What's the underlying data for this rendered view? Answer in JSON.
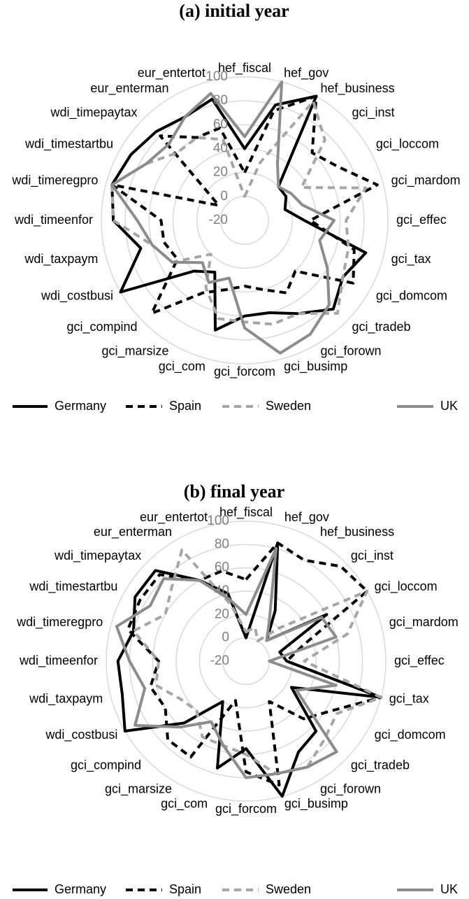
{
  "chart_data": [
    {
      "type": "radar",
      "title": "(a) initial year",
      "categories": [
        "hef_fiscal",
        "hef_gov",
        "hef_business",
        "gci_inst",
        "gci_loccom",
        "gci_mardom",
        "gci_effec",
        "gci_tax",
        "gci_domcom",
        "gci_tradeb",
        "gci_forown",
        "gci_busimp",
        "gci_forcom",
        "gci_com",
        "gci_marsize",
        "gci_compind",
        "wdi_costbusi",
        "wdi_taxpaym",
        "wdi_timeenfor",
        "wdi_timeregpro",
        "wdi_timestartbu",
        "wdi_timepaytax",
        "eur_enterman",
        "eur_entertot"
      ],
      "ylim": [
        -20,
        100
      ],
      "yticks": [
        -20,
        0,
        20,
        40,
        60,
        80,
        100
      ],
      "grid": true,
      "series": [
        {
          "name": "Germany",
          "color": "#000000",
          "dashed": false,
          "values": [
            40,
            80,
            100,
            20,
            20,
            15,
            30,
            85,
            75,
            85,
            70,
            60,
            60,
            75,
            30,
            40,
            100,
            70,
            90,
            95,
            90,
            85,
            80,
            85
          ]
        },
        {
          "name": "Spain",
          "color": "#000000",
          "dashed": true,
          "values": [
            20,
            75,
            100,
            60,
            70,
            95,
            35,
            75,
            85,
            40,
            50,
            40,
            35,
            40,
            50,
            90,
            45,
            50,
            50,
            95,
            5,
            80,
            60,
            60
          ]
        },
        {
          "name": "Sweden",
          "color": "#a6a6a6",
          "dashed": true,
          "values": [
            0,
            30,
            95,
            75,
            35,
            85,
            65,
            70,
            75,
            90,
            70,
            70,
            65,
            65,
            45,
            20,
            50,
            60,
            90,
            95,
            75,
            60,
            60,
            50
          ]
        },
        {
          "name": "UK",
          "color": "#8c8c8c",
          "dashed": false,
          "values": [
            50,
            100,
            35,
            20,
            25,
            30,
            55,
            45,
            60,
            80,
            90,
            95,
            70,
            30,
            40,
            30,
            50,
            60,
            70,
            95,
            75,
            70,
            80,
            90
          ]
        }
      ]
    },
    {
      "type": "radar",
      "title": "(b) final year",
      "categories": [
        "hef_fiscal",
        "hef_gov",
        "hef_business",
        "gci_inst",
        "gci_loccom",
        "gci_mardom",
        "gci_effec",
        "gci_tax",
        "gci_domcom",
        "gci_tradeb",
        "gci_forown",
        "gci_busimp",
        "gci_forcom",
        "gci_com",
        "gci_marsize",
        "gci_compind",
        "wdi_costbusi",
        "wdi_taxpaym",
        "wdi_timeenfor",
        "wdi_timeregpro",
        "wdi_timestartbu",
        "wdi_timepaytax",
        "eur_enterman",
        "eur_entertot"
      ],
      "ylim": [
        -20,
        100
      ],
      "yticks": [
        -20,
        0,
        20,
        40,
        60,
        80,
        100
      ],
      "grid": true,
      "series": [
        {
          "name": "Germany",
          "color": "#000000",
          "dashed": false,
          "values": [
            0,
            85,
            30,
            5,
            60,
            10,
            15,
            100,
            25,
            65,
            70,
            100,
            55,
            75,
            20,
            55,
            100,
            90,
            90,
            80,
            90,
            90,
            60,
            40
          ]
        },
        {
          "name": "Spain",
          "color": "#000000",
          "dashed": true,
          "values": [
            50,
            85,
            80,
            95,
            100,
            30,
            15,
            100,
            65,
            50,
            20,
            90,
            75,
            15,
            75,
            75,
            60,
            65,
            55,
            85,
            85,
            85,
            60,
            60
          ]
        },
        {
          "name": "Sweden",
          "color": "#a6a6a6",
          "dashed": true,
          "values": [
            5,
            10,
            0,
            20,
            100,
            70,
            30,
            100,
            70,
            75,
            85,
            80,
            60,
            55,
            55,
            40,
            45,
            60,
            55,
            80,
            60,
            70,
            90,
            30
          ]
        },
        {
          "name": "UK",
          "color": "#8c8c8c",
          "dashed": false,
          "values": [
            20,
            80,
            20,
            5,
            55,
            60,
            0,
            60,
            30,
            90,
            85,
            80,
            80,
            55,
            40,
            60,
            90,
            70,
            80,
            95,
            75,
            80,
            60,
            35
          ]
        }
      ]
    }
  ]
}
